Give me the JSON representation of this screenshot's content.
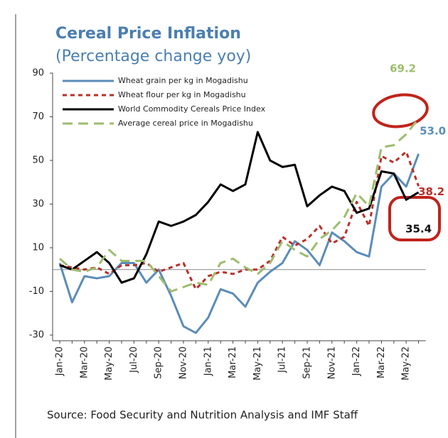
{
  "chart_data": {
    "type": "line",
    "title": "Cereal Price Inflation",
    "subtitle": "(Percentage change yoy)",
    "source": "Source: Food Security and Nutrition Analysis and IMF Staff",
    "categories": [
      "Jan-20",
      null,
      "Mar-20",
      null,
      "May-20",
      null,
      "Jul-20",
      null,
      "Sep-20",
      null,
      "Nov-20",
      null,
      "Jan-21",
      null,
      "Mar-21",
      null,
      "May-21",
      null,
      "Jul-21",
      null,
      "Sep-21",
      null,
      "Nov-21",
      null,
      "Jan-22",
      null,
      "Mar-22",
      null,
      "May-22",
      null
    ],
    "ylim": [
      -30,
      90
    ],
    "yticks": [
      -30,
      -10,
      10,
      30,
      50,
      70,
      90
    ],
    "legend": "upper left",
    "series": [
      {
        "name": "Wheat grain per kg in Mogadishu",
        "color": "#5b8db8",
        "dash": "solid",
        "values": [
          3,
          -15,
          -3,
          -4,
          -3,
          3,
          3,
          -6,
          0,
          -12,
          -26,
          -29,
          -22,
          -9,
          -11,
          -17,
          -6,
          -1,
          3,
          13,
          9,
          2,
          17,
          13,
          8,
          6,
          38,
          44,
          38,
          53
        ],
        "value_labels": [
          null,
          null,
          null,
          null,
          null,
          null,
          null,
          null,
          null,
          null,
          null,
          null,
          null,
          null,
          null,
          null,
          null,
          null,
          null,
          null,
          null,
          null,
          null,
          null,
          null,
          null,
          null,
          null,
          null,
          "53.0"
        ]
      },
      {
        "name": "Wheat flour per kg in Mogadishu",
        "color": "#b8302a",
        "dash": "short",
        "values": [
          2,
          1,
          0,
          1,
          -2,
          2,
          2,
          3,
          -1,
          1,
          3,
          -9,
          -3,
          -1,
          -2,
          0,
          0,
          4,
          15,
          11,
          14,
          20,
          12,
          15,
          31,
          20,
          52,
          49,
          54,
          38.2
        ],
        "value_labels": [
          null,
          null,
          null,
          null,
          null,
          null,
          null,
          null,
          null,
          null,
          null,
          null,
          null,
          null,
          null,
          null,
          null,
          null,
          null,
          null,
          null,
          null,
          null,
          null,
          null,
          null,
          null,
          null,
          null,
          "38.2"
        ]
      },
      {
        "name": "World Commodity Cereals Price Index",
        "color": "#000000",
        "dash": "solid",
        "values": [
          2,
          0,
          4,
          8,
          3,
          -6,
          -4,
          7,
          22,
          20,
          22,
          25,
          31,
          39,
          36,
          39,
          63,
          50,
          47,
          48,
          29,
          34,
          38,
          36,
          26,
          28,
          45,
          44,
          32,
          35.4
        ],
        "value_labels": [
          null,
          null,
          null,
          null,
          null,
          null,
          null,
          null,
          null,
          null,
          null,
          null,
          null,
          null,
          null,
          null,
          null,
          null,
          null,
          null,
          null,
          null,
          null,
          null,
          null,
          null,
          null,
          null,
          null,
          "35.4"
        ]
      },
      {
        "name": "Average cereal price in Mogadishu",
        "color": "#9dbd6e",
        "dash": "long",
        "values": [
          5,
          0,
          -1,
          1,
          9,
          4,
          4,
          4,
          -3,
          -10,
          -8,
          -6,
          -7,
          3,
          5,
          1,
          -2,
          3,
          13,
          9,
          6,
          14,
          18,
          24,
          35,
          29,
          56,
          57,
          62,
          69.2
        ],
        "value_labels": [
          null,
          null,
          null,
          null,
          null,
          null,
          null,
          null,
          null,
          null,
          null,
          null,
          null,
          null,
          null,
          null,
          null,
          null,
          null,
          null,
          null,
          null,
          null,
          null,
          null,
          null,
          null,
          null,
          null,
          "69.2"
        ]
      }
    ]
  }
}
